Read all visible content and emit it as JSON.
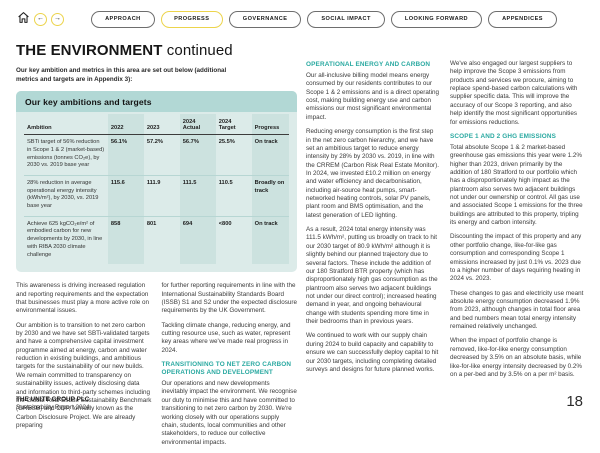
{
  "nav": {
    "back_glyph": "←",
    "forward_glyph": "→",
    "tabs": [
      {
        "label": "APPROACH",
        "active": false
      },
      {
        "label": "PROGRESS",
        "active": true
      },
      {
        "label": "GOVERNANCE",
        "active": false
      },
      {
        "label": "SOCIAL IMPACT",
        "active": false
      },
      {
        "label": "LOOKING FORWARD",
        "active": false
      },
      {
        "label": "APPENDICES",
        "active": false
      }
    ]
  },
  "page": {
    "title_main": "THE ENVIRONMENT",
    "title_suffix": " continued",
    "intro": "Our key ambition and metrics in this area are set out below (additional metrics and targets are in Appendix 3):"
  },
  "table": {
    "title": "Our key ambitions and targets",
    "columns": [
      "Ambition",
      "2022",
      "2023",
      "2024\nActual",
      "2024\nTarget",
      "Progress"
    ],
    "rows": [
      [
        "SBTi target of 56% reduction in Scope 1 & 2 (market-based) emissions (tonnes CO₂e), by 2030 vs. 2019 base year",
        "56.1%",
        "57.2%",
        "56.7%",
        "25.5%",
        "On track"
      ],
      [
        "28% reduction in average operational energy intensity (kWh/m²), by 2030, vs. 2019 base year",
        "115.6",
        "111.9",
        "111.5",
        "110.5",
        "Broadly on track"
      ],
      [
        "Achieve 625 kgCO₂e/m² of embodied carbon for new developments by 2030, in line with RIBA 2030 climate challenge",
        "858",
        "801",
        "694",
        "<800",
        "On track"
      ]
    ]
  },
  "body": {
    "col1": [
      {
        "type": "p",
        "text": "This awareness is driving increased regulation and reporting requirements and the expectation that businesses must play a more active role on environmental issues."
      },
      {
        "type": "p",
        "text": "Our ambition is to transition to net zero carbon by 2030 and we have set SBTi-validated targets and have a comprehensive capital investment programme aimed at energy, carbon and water reduction in existing buildings, and ambitious targets for the sustainability of our new builds. We remain committed to transparency on sustainability issues, actively disclosing data and information to third-party schemes including the Global Real Estate Sustainability Benchmark (GRESB) and CDP, formally known as the Carbon Disclosure Project. We are already preparing"
      }
    ],
    "col2": [
      {
        "type": "p",
        "text": "for further reporting requirements in line with the International Sustainability Standards Board (ISSB) S1 and S2 under the expected disclosure requirements by the UK Government."
      },
      {
        "type": "p",
        "text": "Tackling climate change, reducing energy, and cutting resource use, such as water, represent key areas where we've made real progress in 2024."
      },
      {
        "type": "h",
        "text": "TRANSITIONING TO NET ZERO CARBON OPERATIONS AND DEVELOPMENT"
      },
      {
        "type": "p",
        "text": "Our operations and new developments inevitably impact the environment. We recognise our duty to minimise this and have committed to transitioning to net zero carbon by 2030. We're working closely with our operations supply chain, students, local communities and other stakeholders, to reduce our collective environmental impacts."
      }
    ],
    "col3": [
      {
        "type": "h",
        "text": "OPERATIONAL ENERGY AND CARBON"
      },
      {
        "type": "p",
        "text": "Our all-inclusive billing model means energy consumed by our residents contributes to our Scope 1 & 2 emissions and is a direct operating cost, making building energy use and carbon emissions our most significant environmental impact."
      },
      {
        "type": "p",
        "text": "Reducing energy consumption is the first step in the net zero carbon hierarchy, and we have set an ambitious target to reduce energy intensity by 28% by 2030 vs. 2019, in line with the CRREM (Carbon Risk Real Estate Monitor). In 2024, we invested £10.2 million on energy and water efficiency and decarbonisation, including air-source heat pumps, smart-networked heating controls, solar PV panels, plant room and BMS optimisation, and the latest generation of LED lighting."
      },
      {
        "type": "p",
        "text": "As a result, 2024 total energy intensity was 111.5 kWh/m², putting us broadly on track to hit our 2030 target of 80.9 kWh/m² although it is slightly behind our planned trajectory due to several factors. These include the addition of our 180 Stratford BTR property (which has disproportionately high gas consumption as the plantroom also serves two adjacent buildings not under our direct control); increased heating demand in year, and ongoing behavioural change with students spending more time in their bedrooms than in previous years."
      },
      {
        "type": "p",
        "text": "We continued to work with our supply chain during 2024 to build capacity and capability to ensure we can successfully deploy capital to hit our 2030 targets, including completing detailed surveys and designs for future planned works."
      }
    ],
    "col4": [
      {
        "type": "p",
        "text": "We've also engaged our largest suppliers to help improve the Scope 3 emissions from products and services we procure, aiming to replace spend-based carbon calculations with supplier specific data. This will improve the accuracy of our Scope 3 reporting, and also help identify the most significant opportunities for emissions reductions."
      },
      {
        "type": "h",
        "text": "SCOPE 1 AND 2 GHG EMISSIONS"
      },
      {
        "type": "p",
        "text": "Total absolute Scope 1 & 2 market-based greenhouse gas emissions this year were 1.2% higher than 2023, driven primarily by the addition of 180 Stratford to our portfolio which has a disproportionately high impact as the plantroom also serves two adjacent buildings not under our ownership or control. All gas use and associated Scope 1 emissions for the three buildings are attributed to this property, tripling its energy and carbon intensity."
      },
      {
        "type": "p",
        "text": "Discounting the impact of this property and any other portfolio change, like-for-like gas consumption and corresponding Scope 1 emissions increased by just 0.1% vs. 2023 due to a higher number of days requiring heating in 2024 vs. 2023."
      },
      {
        "type": "p",
        "text": "These changes to gas and electricity use meant absolute energy consumption decreased 1.9% from 2023, although changes in total floor area and bed numbers mean total energy intensity remained relatively unchanged."
      },
      {
        "type": "p",
        "text": "When the impact of portfolio change is removed, like-for-like energy consumption decreased by 3.5% on an absolute basis, while like-for-like energy intensity decreased by 0.2% on a per-bed and by 3.5% on a per m² basis."
      }
    ]
  },
  "footer": {
    "company": "THE UNITE GROUP PLC",
    "report": "Sustainability Report 2024",
    "page": "18"
  }
}
